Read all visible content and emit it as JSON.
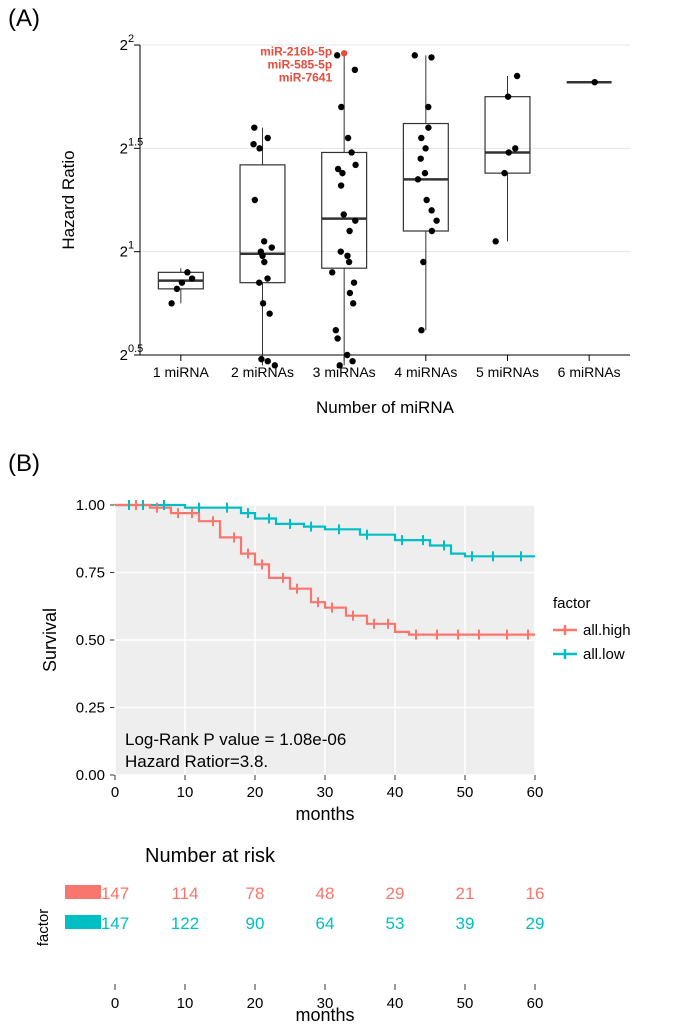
{
  "panelA": {
    "label": "(A)",
    "type": "boxplot",
    "xlabel": "Number of miRNA",
    "ylabel": "Hazard Ratio",
    "categories": [
      "1 miRNA",
      "2 miRNAs",
      "3 miRNAs",
      "4 miRNAs",
      "5 miRNAs",
      "6 miRNAs"
    ],
    "ytick_labels": [
      "2^0.5",
      "2^1",
      "2^1.5",
      "2^2"
    ],
    "ytick_exp": [
      0.5,
      1.0,
      1.5,
      2.0
    ],
    "boxes": [
      {
        "q1": 0.82,
        "median": 0.86,
        "q3": 0.9,
        "lower": 0.75,
        "upper": 0.92
      },
      {
        "q1": 0.85,
        "median": 0.99,
        "q3": 1.42,
        "lower": 0.45,
        "upper": 1.6
      },
      {
        "q1": 0.92,
        "median": 1.16,
        "q3": 1.48,
        "lower": 0.45,
        "upper": 1.95
      },
      {
        "q1": 1.1,
        "median": 1.35,
        "q3": 1.62,
        "lower": 0.62,
        "upper": 1.95
      },
      {
        "q1": 1.38,
        "median": 1.48,
        "q3": 1.75,
        "lower": 1.05,
        "upper": 1.85
      },
      {
        "q1": 1.82,
        "median": 1.82,
        "q3": 1.82,
        "lower": 1.82,
        "upper": 1.82
      }
    ],
    "points": [
      [
        0.85,
        0.82,
        0.87,
        0.9,
        0.75
      ],
      [
        1.5,
        1.52,
        1.6,
        1.55,
        1.25,
        1.0,
        1.05,
        0.95,
        0.98,
        0.85,
        0.87,
        0.7,
        0.75,
        0.45,
        0.47,
        0.48,
        1.02
      ],
      [
        1.95,
        1.88,
        1.7,
        1.55,
        1.4,
        1.42,
        1.38,
        1.32,
        1.18,
        1.15,
        1.1,
        1.0,
        0.98,
        0.95,
        0.9,
        0.85,
        0.8,
        0.75,
        0.62,
        0.58,
        0.45,
        0.47,
        0.5,
        1.48
      ],
      [
        1.95,
        1.94,
        1.7,
        1.6,
        1.55,
        1.5,
        1.45,
        1.35,
        1.38,
        1.25,
        1.2,
        1.15,
        1.1,
        0.95,
        0.62
      ],
      [
        1.85,
        1.75,
        1.5,
        1.48,
        1.38,
        1.05
      ],
      [
        1.82
      ]
    ],
    "highlight": {
      "labels": [
        "miR-216b-5p",
        "miR-585-5p",
        "miR-7641"
      ],
      "color": "#e74c3c",
      "x_cat": 3,
      "y_exp": 1.96
    },
    "point_color": "#000000",
    "box_stroke": "#333333",
    "median_stroke": "#333333",
    "background": "#ffffff",
    "grid_color": "#e5e5e5"
  },
  "panelB": {
    "label": "(B)",
    "type": "survival",
    "xlabel": "months",
    "ylabel": "Survival",
    "legend_title": "factor",
    "legend_items": [
      {
        "label": "all.high",
        "color": "#f8766d"
      },
      {
        "label": "all.low",
        "color": "#00bfc4"
      }
    ],
    "xlim": [
      0,
      60
    ],
    "xticks": [
      0,
      10,
      20,
      30,
      40,
      50,
      60
    ],
    "ylim": [
      0,
      1.0
    ],
    "yticks": [
      0.0,
      0.25,
      0.5,
      0.75,
      1.0
    ],
    "stats": {
      "line1": "Log-Rank P value = 1.08e-06",
      "line2": "Hazard Ratior=3.8."
    },
    "curves": {
      "high": [
        [
          0,
          1.0
        ],
        [
          2,
          1.0
        ],
        [
          5,
          0.99
        ],
        [
          8,
          0.97
        ],
        [
          12,
          0.94
        ],
        [
          15,
          0.88
        ],
        [
          18,
          0.82
        ],
        [
          20,
          0.78
        ],
        [
          22,
          0.73
        ],
        [
          25,
          0.69
        ],
        [
          28,
          0.64
        ],
        [
          30,
          0.62
        ],
        [
          33,
          0.59
        ],
        [
          36,
          0.56
        ],
        [
          40,
          0.53
        ],
        [
          42,
          0.52
        ],
        [
          50,
          0.52
        ],
        [
          60,
          0.52
        ]
      ],
      "low": [
        [
          0,
          1.0
        ],
        [
          5,
          1.0
        ],
        [
          10,
          0.99
        ],
        [
          15,
          0.99
        ],
        [
          18,
          0.97
        ],
        [
          20,
          0.95
        ],
        [
          23,
          0.93
        ],
        [
          27,
          0.92
        ],
        [
          30,
          0.91
        ],
        [
          35,
          0.89
        ],
        [
          40,
          0.87
        ],
        [
          45,
          0.85
        ],
        [
          48,
          0.82
        ],
        [
          50,
          0.81
        ],
        [
          55,
          0.81
        ],
        [
          60,
          0.81
        ]
      ]
    },
    "censor_ticks_high": [
      3,
      6,
      9,
      11,
      14,
      17,
      19,
      21,
      24,
      26,
      29,
      31,
      34,
      37,
      39,
      43,
      46,
      49,
      52,
      56,
      59
    ],
    "censor_ticks_low": [
      2,
      4,
      7,
      12,
      16,
      19,
      22,
      25,
      28,
      32,
      36,
      41,
      44,
      47,
      51,
      54,
      58
    ],
    "background": "#eeeeee",
    "grid_color": "#ffffff",
    "risk_table": {
      "title": "Number at risk",
      "ylabel": "factor",
      "xlabel": "months",
      "xticks": [
        0,
        10,
        20,
        30,
        40,
        50,
        60
      ],
      "rows": [
        {
          "color": "#f8766d",
          "values": [
            147,
            114,
            78,
            48,
            29,
            21,
            16
          ]
        },
        {
          "color": "#00bfc4",
          "values": [
            147,
            122,
            90,
            64,
            53,
            39,
            29
          ]
        }
      ]
    }
  }
}
